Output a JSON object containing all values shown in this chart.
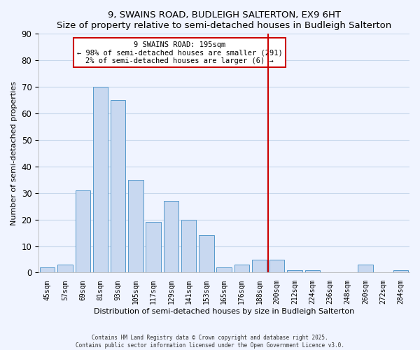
{
  "title": "9, SWAINS ROAD, BUDLEIGH SALTERTON, EX9 6HT",
  "subtitle": "Size of property relative to semi-detached houses in Budleigh Salterton",
  "xlabel": "Distribution of semi-detached houses by size in Budleigh Salterton",
  "ylabel": "Number of semi-detached properties",
  "categories": [
    "45sqm",
    "57sqm",
    "69sqm",
    "81sqm",
    "93sqm",
    "105sqm",
    "117sqm",
    "129sqm",
    "141sqm",
    "153sqm",
    "165sqm",
    "176sqm",
    "188sqm",
    "200sqm",
    "212sqm",
    "224sqm",
    "236sqm",
    "248sqm",
    "260sqm",
    "272sqm",
    "284sqm"
  ],
  "values": [
    2,
    3,
    31,
    70,
    65,
    35,
    19,
    27,
    20,
    14,
    2,
    3,
    5,
    5,
    1,
    1,
    0,
    0,
    3,
    0,
    1
  ],
  "bar_color": "#c8d8f0",
  "bar_edge_color": "#5599cc",
  "vline_color": "#cc0000",
  "annotation_title": "9 SWAINS ROAD: 195sqm",
  "annotation_line1": "← 98% of semi-detached houses are smaller (291)",
  "annotation_line2": "2% of semi-detached houses are larger (6) →",
  "annotation_box_color": "#ffffff",
  "annotation_box_edge": "#cc0000",
  "ylim": [
    0,
    90
  ],
  "yticks": [
    0,
    10,
    20,
    30,
    40,
    50,
    60,
    70,
    80,
    90
  ],
  "footer1": "Contains HM Land Registry data © Crown copyright and database right 2025.",
  "footer2": "Contains public sector information licensed under the Open Government Licence v3.0.",
  "bg_color": "#f0f4ff",
  "grid_color": "#c8d8ec"
}
